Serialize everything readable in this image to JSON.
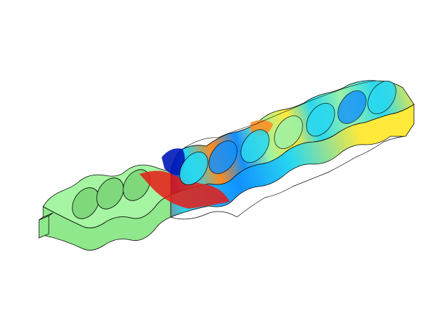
{
  "scene": {
    "model": "periodic-slotted-beam",
    "cells": 8,
    "background_color": "#ffffff",
    "edge_color": "#000000",
    "undeformed_color": "#a6f5a3",
    "colormap": [
      "#0018b8",
      "#1190ff",
      "#29d8f0",
      "#9af2a8",
      "#ffe93a",
      "#ff8a1f",
      "#e61b15"
    ]
  }
}
